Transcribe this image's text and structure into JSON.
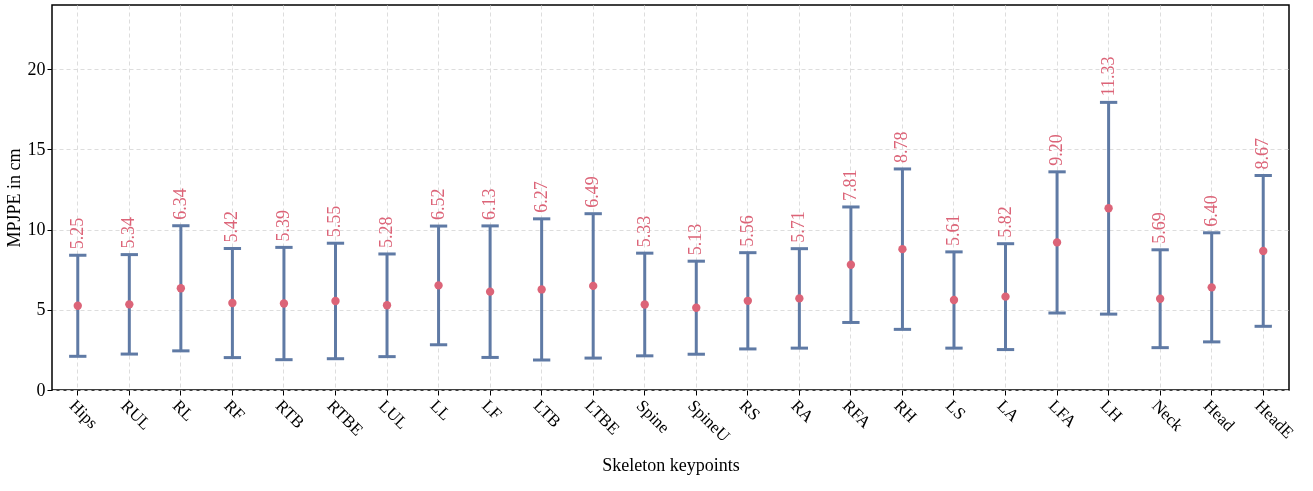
{
  "chart_data": {
    "type": "scatter",
    "xlabel": "Skeleton keypoints",
    "ylabel": "MPJPE in cm",
    "categories": [
      "Hips",
      "RUL",
      "RL",
      "RF",
      "RTB",
      "RTBE",
      "LUL",
      "LL",
      "LF",
      "LTB",
      "LTBE",
      "Spine",
      "SpineU",
      "RS",
      "RA",
      "RFA",
      "RH",
      "LS",
      "LA",
      "LFA",
      "LH",
      "Neck",
      "Head",
      "HeadE"
    ],
    "series": [
      {
        "color": "#dc6478",
        "values": [
          5.25,
          5.34,
          6.34,
          5.42,
          5.39,
          5.55,
          5.28,
          6.52,
          6.13,
          6.27,
          6.49,
          5.33,
          5.13,
          5.56,
          5.71,
          7.81,
          8.78,
          5.61,
          5.82,
          9.2,
          11.33,
          5.69,
          6.4,
          8.67
        ],
        "errors": [
          3.15,
          3.1,
          3.9,
          3.4,
          3.5,
          3.6,
          3.2,
          3.7,
          4.1,
          4.4,
          4.5,
          3.2,
          2.9,
          3.0,
          3.1,
          3.6,
          5.0,
          3.0,
          3.3,
          4.4,
          6.6,
          3.05,
          3.4,
          4.7
        ]
      }
    ],
    "value_labels": [
      "5.25",
      "5.34",
      "6.34",
      "5.42",
      "5.39",
      "5.55",
      "5.28",
      "6.52",
      "6.13",
      "6.27",
      "6.49",
      "5.33",
      "5.13",
      "5.56",
      "5.71",
      "7.81",
      "8.78",
      "5.61",
      "5.82",
      "9.20",
      "11.33",
      "5.69",
      "6.40",
      "8.67"
    ],
    "ylim": [
      0,
      24
    ],
    "yticks": [
      0,
      5,
      10,
      15,
      20
    ],
    "grid": true,
    "marker": "circle"
  }
}
